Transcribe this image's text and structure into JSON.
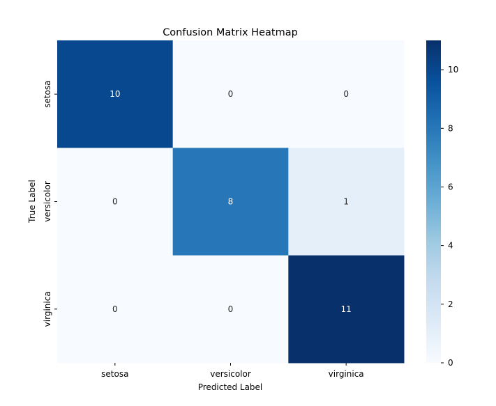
{
  "chart_data": {
    "type": "heatmap",
    "title": "Confusion Matrix Heatmap",
    "xlabel": "Predicted Label",
    "ylabel": "True Label",
    "x_categories": [
      "setosa",
      "versicolor",
      "virginica"
    ],
    "y_categories": [
      "setosa",
      "versicolor",
      "virginica"
    ],
    "values": [
      [
        10,
        0,
        0
      ],
      [
        0,
        8,
        1
      ],
      [
        0,
        0,
        11
      ]
    ],
    "colormap": "Blues",
    "vmin": 0,
    "vmax": 11,
    "colorbar_ticks": [
      0,
      2,
      4,
      6,
      8,
      10
    ],
    "annotations": true,
    "colorbar": "right"
  }
}
